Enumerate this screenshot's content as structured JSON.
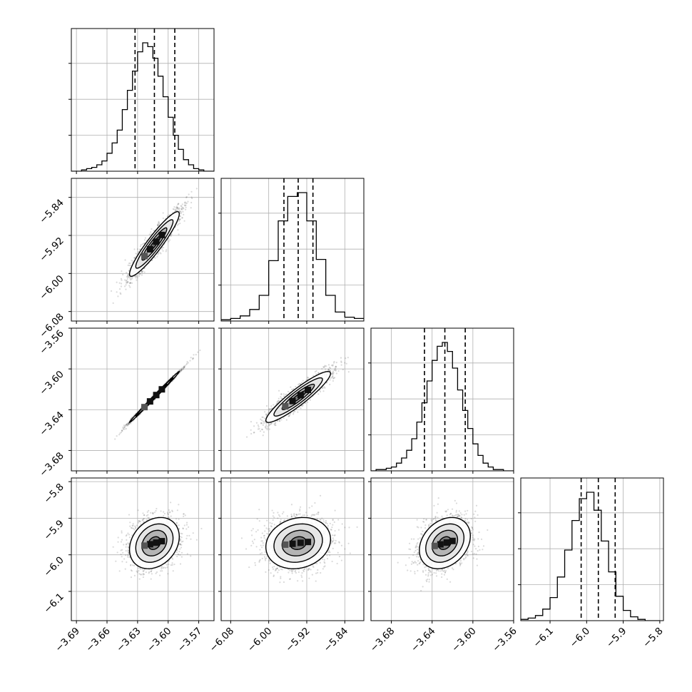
{
  "chart_data": {
    "type": "corner",
    "grid": true,
    "parameters": [
      {
        "ticks": [
          -3.69,
          -3.66,
          -3.63,
          -3.6,
          -3.57
        ],
        "tick_labels": [
          "−3.69",
          "−3.66",
          "−3.63",
          "−3.60",
          "−3.57"
        ],
        "range": [
          -3.695,
          -3.555
        ]
      },
      {
        "ticks": [
          -6.08,
          -6.0,
          -5.92,
          -5.84
        ],
        "tick_labels": [
          "−6.08",
          "−6.00",
          "−5.92",
          "−5.84"
        ],
        "range": [
          -6.1,
          -5.8
        ]
      },
      {
        "ticks": [
          -3.68,
          -3.64,
          -3.6,
          -3.56
        ],
        "tick_labels": [
          "−3.68",
          "−3.64",
          "−3.60",
          "−3.56"
        ],
        "range": [
          -3.7,
          -3.56
        ]
      },
      {
        "ticks": [
          -6.1,
          -6.0,
          -5.9,
          -5.8
        ],
        "tick_labels": [
          "−6.1",
          "−6.0",
          "−5.9",
          "−5.8"
        ],
        "range": [
          -6.18,
          -5.79
        ]
      }
    ],
    "histograms": [
      {
        "bins": [
          -3.695,
          -3.69,
          -3.685,
          -3.68,
          -3.675,
          -3.67,
          -3.665,
          -3.66,
          -3.655,
          -3.65,
          -3.645,
          -3.64,
          -3.635,
          -3.63,
          -3.625,
          -3.62,
          -3.615,
          -3.61,
          -3.605,
          -3.6,
          -3.595,
          -3.59,
          -3.585,
          -3.58,
          -3.575,
          -3.57,
          -3.565,
          -3.56,
          -3.555
        ],
        "counts": [
          0,
          0,
          1,
          2,
          3,
          5,
          8,
          14,
          22,
          32,
          48,
          63,
          78,
          93,
          100,
          97,
          88,
          74,
          58,
          42,
          28,
          17,
          9,
          5,
          2,
          1,
          0,
          0
        ],
        "quantiles": [
          -3.6325,
          -3.6135,
          -3.5935
        ]
      },
      {
        "bins": [
          -6.1,
          -6.08,
          -6.06,
          -6.04,
          -6.02,
          -6.0,
          -5.98,
          -5.96,
          -5.94,
          -5.92,
          -5.9,
          -5.88,
          -5.86,
          -5.84,
          -5.82,
          -5.8
        ],
        "counts": [
          1,
          2,
          4,
          9,
          20,
          47,
          78,
          97,
          100,
          78,
          48,
          20,
          7,
          3,
          2
        ],
        "quantiles": [
          -5.968,
          -5.938,
          -5.907
        ]
      },
      {
        "bins": [
          -3.7,
          -3.695,
          -3.69,
          -3.685,
          -3.68,
          -3.675,
          -3.67,
          -3.665,
          -3.66,
          -3.655,
          -3.65,
          -3.645,
          -3.64,
          -3.635,
          -3.63,
          -3.625,
          -3.62,
          -3.615,
          -3.61,
          -3.605,
          -3.6,
          -3.595,
          -3.59,
          -3.585,
          -3.58,
          -3.575,
          -3.57,
          -3.565,
          -3.56
        ],
        "counts": [
          0,
          1,
          1,
          2,
          3,
          6,
          10,
          16,
          25,
          38,
          53,
          70,
          86,
          97,
          100,
          93,
          80,
          63,
          47,
          33,
          21,
          12,
          6,
          3,
          1,
          1,
          0,
          0
        ],
        "quantiles": [
          -3.6475,
          -3.6275,
          -3.6075
        ]
      },
      {
        "bins": [
          -6.18,
          -6.16,
          -6.14,
          -6.12,
          -6.1,
          -6.08,
          -6.06,
          -6.04,
          -6.02,
          -6.0,
          -5.98,
          -5.96,
          -5.94,
          -5.92,
          -5.9,
          -5.88,
          -5.86,
          -5.84,
          -5.82,
          -5.8
        ],
        "counts": [
          1,
          2,
          4,
          9,
          18,
          34,
          55,
          78,
          95,
          100,
          86,
          62,
          38,
          19,
          8,
          3,
          1,
          0,
          0
        ],
        "quantiles": [
          -6.015,
          -5.968,
          -5.922
        ]
      }
    ],
    "pairs": [
      {
        "row": 1,
        "col": 0,
        "mean": [
          -3.6135,
          -5.938
        ],
        "std": [
          0.0122,
          0.034
        ],
        "corr": 0.93
      },
      {
        "row": 2,
        "col": 0,
        "mean": [
          -3.6135,
          -3.6275
        ],
        "std": [
          0.0122,
          0.0125
        ],
        "corr": 0.997
      },
      {
        "row": 2,
        "col": 1,
        "mean": [
          -5.938,
          -3.6275
        ],
        "std": [
          0.034,
          0.0125
        ],
        "corr": 0.92
      },
      {
        "row": 3,
        "col": 0,
        "mean": [
          -3.6135,
          -5.968
        ],
        "std": [
          0.0122,
          0.035
        ],
        "corr": 0.25
      },
      {
        "row": 3,
        "col": 1,
        "mean": [
          -5.938,
          -5.968
        ],
        "std": [
          0.034,
          0.035
        ],
        "corr": 0.15
      },
      {
        "row": 3,
        "col": 2,
        "mean": [
          -3.6275,
          -5.968
        ],
        "std": [
          0.0125,
          0.035
        ],
        "corr": 0.28
      }
    ],
    "contour_levels_sigma": [
      0.5,
      1.0,
      1.5,
      2.0
    ],
    "colors": {
      "axes": "#000000",
      "grid": "#b0b0b0",
      "points": "#555555",
      "line": "#000000"
    }
  }
}
